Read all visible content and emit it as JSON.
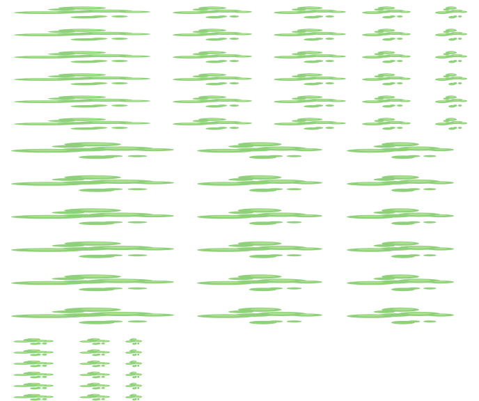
{
  "sprite_sheet": {
    "background": "#ffffff",
    "colors": {
      "pad_fill": "#8fd17a",
      "pad_highlight": "#a9df8e",
      "pad_glint": "#e6f7b0"
    },
    "groups": [
      {
        "name": "large-pads",
        "rows": 6,
        "columns": 5
      },
      {
        "name": "medium-pads",
        "rows": 6,
        "columns": 3
      },
      {
        "name": "small-pads",
        "rows": 6,
        "columns": 3
      }
    ]
  }
}
